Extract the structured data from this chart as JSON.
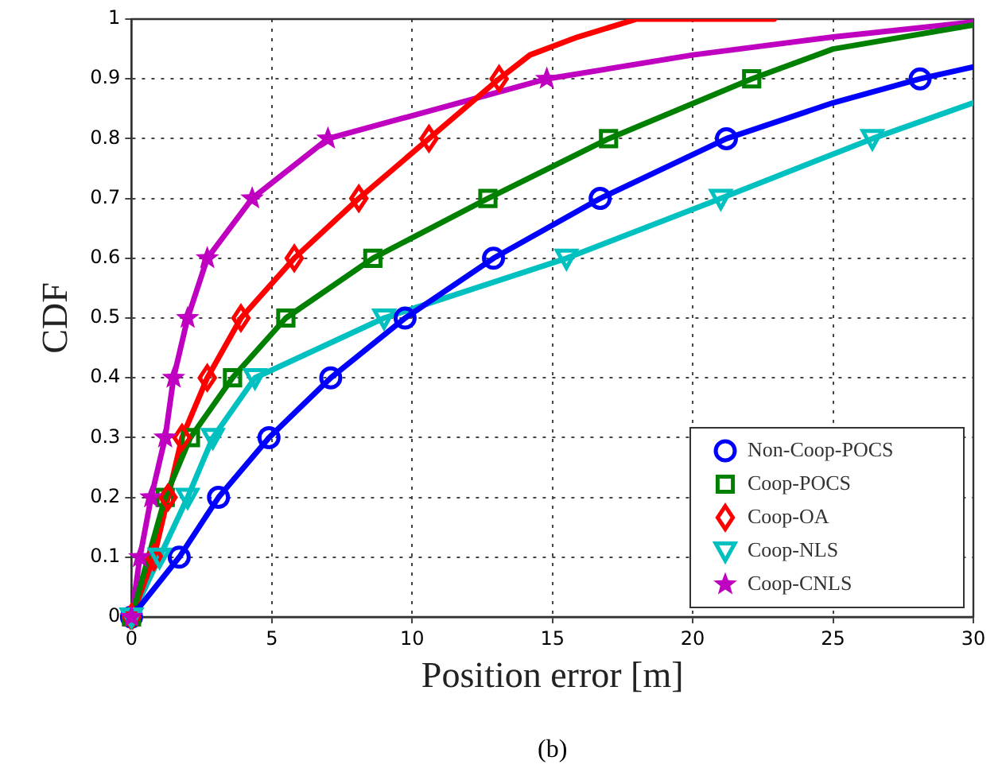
{
  "chart_data": {
    "type": "line",
    "xlabel": "Position error [m]",
    "ylabel": "CDF",
    "annotations": [
      "(b)"
    ],
    "xlim": [
      0,
      30
    ],
    "ylim": [
      0,
      1
    ],
    "xticks": [
      0,
      5,
      10,
      15,
      20,
      25,
      30
    ],
    "yticks": [
      0,
      0.1,
      0.2,
      0.3,
      0.4,
      0.5,
      0.6,
      0.7,
      0.8,
      0.9,
      1
    ],
    "grid": true,
    "legend": "bottom right",
    "line_style": "solid",
    "series": [
      {
        "name": "Non-Coop-POCS",
        "color": "#0000ff",
        "marker": "circle",
        "x": [
          0,
          1.7,
          3.1,
          4.9,
          7.1,
          9.75,
          12.9,
          16.7,
          21.2,
          25,
          28.1,
          30
        ],
        "values": [
          0,
          0.1,
          0.2,
          0.3,
          0.4,
          0.5,
          0.6,
          0.7,
          0.8,
          0.86,
          0.9,
          0.92
        ]
      },
      {
        "name": "Coop-POCS",
        "color": "#008000",
        "marker": "square",
        "x": [
          0,
          1.2,
          2.1,
          3.6,
          5.5,
          8.6,
          12.7,
          17,
          22.1,
          25,
          30
        ],
        "values": [
          0,
          0.2,
          0.3,
          0.4,
          0.5,
          0.6,
          0.7,
          0.8,
          0.9,
          0.95,
          0.99
        ]
      },
      {
        "name": "Coop-OA",
        "color": "#ff0000",
        "marker": "diamond",
        "x": [
          0,
          0.8,
          1.3,
          1.8,
          2.7,
          3.9,
          5.8,
          8.1,
          10.6,
          13.1,
          14.2,
          15.9,
          18,
          22.9
        ],
        "values": [
          0,
          0.1,
          0.2,
          0.3,
          0.4,
          0.5,
          0.6,
          0.7,
          0.8,
          0.9,
          0.94,
          0.97,
          1,
          1
        ]
      },
      {
        "name": "Coop-NLS",
        "color": "#00c0c0",
        "marker": "triangle",
        "x": [
          0,
          1,
          2,
          2.9,
          4.4,
          9,
          15.5,
          21,
          26.4,
          30
        ],
        "values": [
          0,
          0.1,
          0.2,
          0.3,
          0.4,
          0.5,
          0.6,
          0.7,
          0.8,
          0.86
        ]
      },
      {
        "name": "Coop-CNLS",
        "color": "#c000c0",
        "marker": "star",
        "x": [
          0,
          0.3,
          0.7,
          1.2,
          1.5,
          2,
          2.7,
          4.3,
          7,
          14.8,
          20,
          25,
          30
        ],
        "values": [
          0,
          0.1,
          0.2,
          0.3,
          0.4,
          0.5,
          0.6,
          0.7,
          0.8,
          0.9,
          0.94,
          0.97,
          0.995
        ]
      }
    ]
  }
}
